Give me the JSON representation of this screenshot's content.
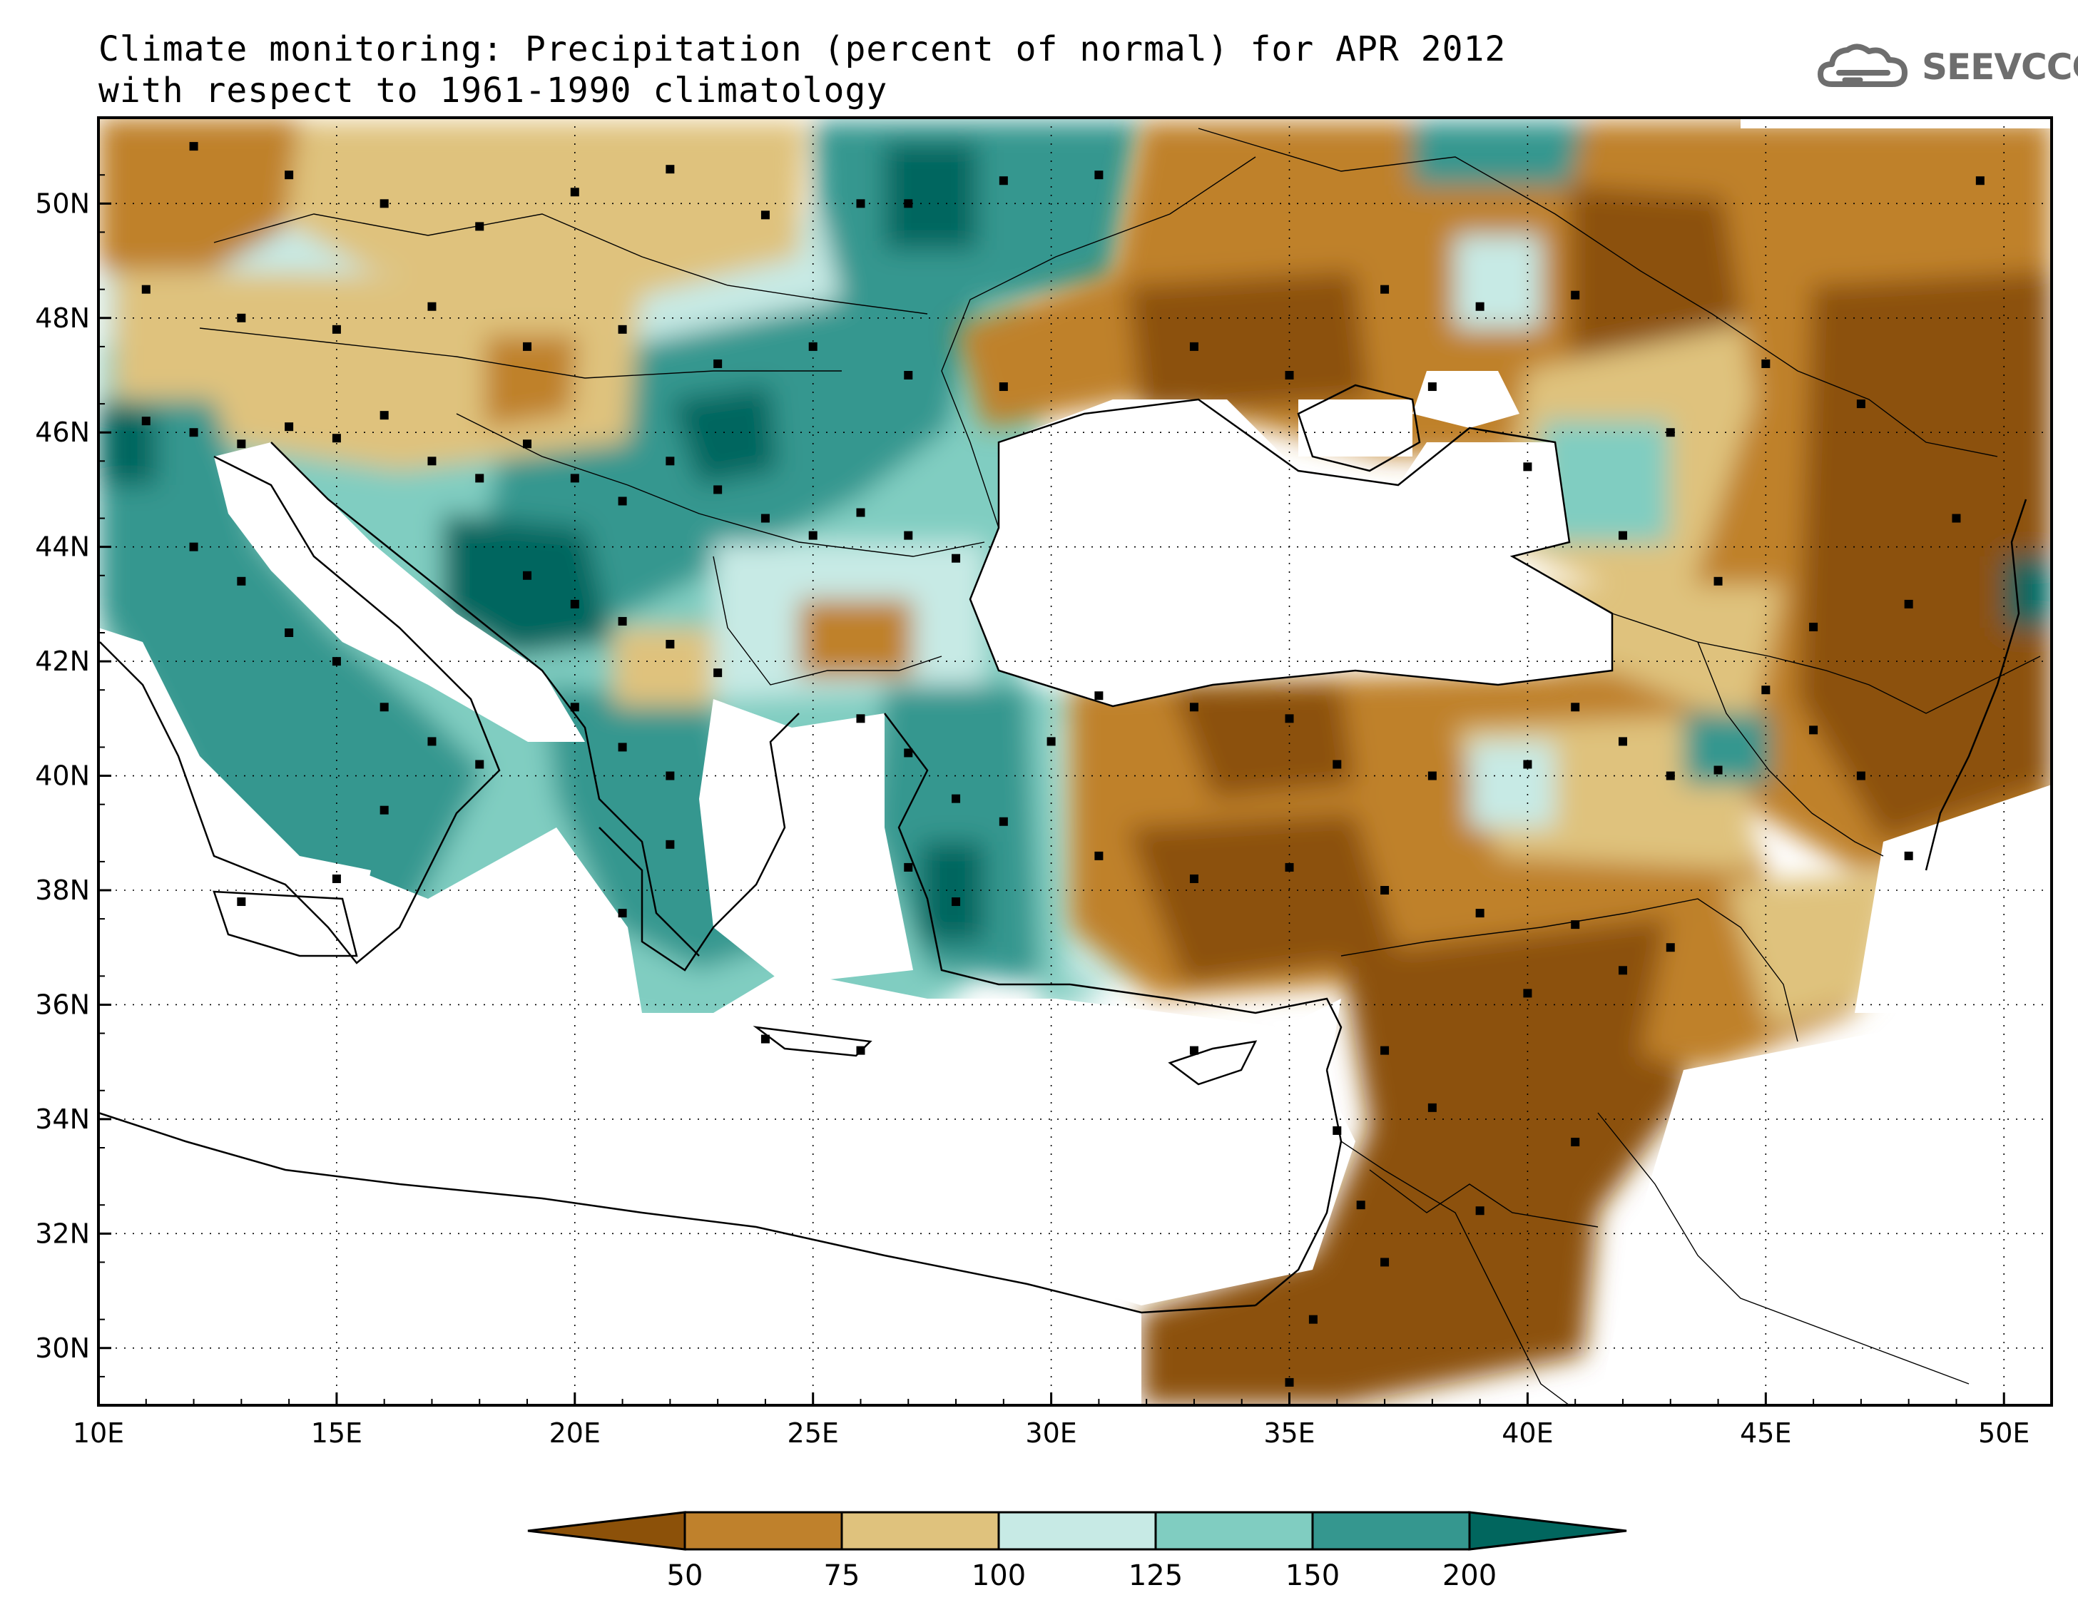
{
  "title": {
    "line1": "Climate monitoring: Precipitation (percent of normal) for APR 2012",
    "line2": "with respect to 1961-1990 climatology"
  },
  "logo": {
    "text": "SEEVCCC",
    "icon": "cloud-icon"
  },
  "map": {
    "lon_range": [
      10,
      51
    ],
    "lat_range": [
      29,
      51.5
    ],
    "x_ticks": [
      {
        "value": 10,
        "label": "10E"
      },
      {
        "value": 15,
        "label": "15E"
      },
      {
        "value": 20,
        "label": "20E"
      },
      {
        "value": 25,
        "label": "25E"
      },
      {
        "value": 30,
        "label": "30E"
      },
      {
        "value": 35,
        "label": "35E"
      },
      {
        "value": 40,
        "label": "40E"
      },
      {
        "value": 45,
        "label": "45E"
      },
      {
        "value": 50,
        "label": "50E"
      }
    ],
    "y_ticks": [
      {
        "value": 30,
        "label": "30N"
      },
      {
        "value": 32,
        "label": "32N"
      },
      {
        "value": 34,
        "label": "34N"
      },
      {
        "value": 36,
        "label": "36N"
      },
      {
        "value": 38,
        "label": "38N"
      },
      {
        "value": 40,
        "label": "40N"
      },
      {
        "value": 42,
        "label": "42N"
      },
      {
        "value": 44,
        "label": "44N"
      },
      {
        "value": 46,
        "label": "46N"
      },
      {
        "value": 48,
        "label": "48N"
      },
      {
        "value": 50,
        "label": "50N"
      }
    ],
    "grid": "dotted"
  },
  "colorbar": {
    "bins": [
      {
        "color": "#8c5109"
      },
      {
        "color": "#bf812c"
      },
      {
        "color": "#dfc27d"
      },
      {
        "color": "#c7eae5"
      },
      {
        "color": "#80cdc1"
      },
      {
        "color": "#35978f"
      },
      {
        "color": "#01665e"
      }
    ],
    "labels": [
      "50",
      "75",
      "100",
      "125",
      "150",
      "200"
    ]
  },
  "colors": {
    "very_dry": "#8c5109",
    "dry": "#bf812c",
    "slightly_dry": "#dfc27d",
    "slightly_wet": "#c7eae5",
    "wet": "#80cdc1",
    "very_wet": "#35978f",
    "extreme_wet": "#01665e"
  }
}
